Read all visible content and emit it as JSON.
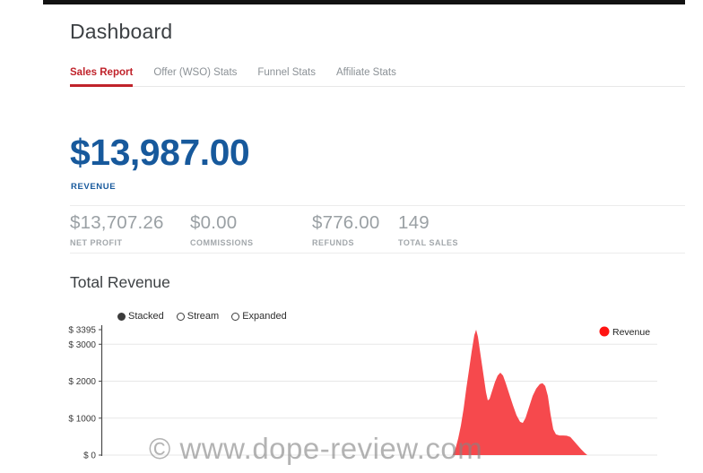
{
  "page": {
    "title": "Dashboard"
  },
  "tabs": [
    {
      "label": "Sales Report",
      "active": true
    },
    {
      "label": "Offer (WSO) Stats",
      "active": false
    },
    {
      "label": "Funnel Stats",
      "active": false
    },
    {
      "label": "Affiliate Stats",
      "active": false
    }
  ],
  "summary": {
    "revenue_value": "$13,987.00",
    "revenue_label": "REVENUE",
    "stats": [
      {
        "value": "$13,707.26",
        "label": "NET PROFIT"
      },
      {
        "value": "$0.00",
        "label": "COMMISSIONS"
      },
      {
        "value": "$776.00",
        "label": "REFUNDS"
      },
      {
        "value": "149",
        "label": "TOTAL SALES"
      }
    ]
  },
  "chart_section": {
    "title": "Total Revenue",
    "modes": [
      {
        "label": "Stacked",
        "selected": true
      },
      {
        "label": "Stream",
        "selected": false
      },
      {
        "label": "Expanded",
        "selected": false
      }
    ],
    "legend": [
      {
        "label": "Revenue",
        "color": "#ff1412"
      }
    ]
  },
  "chart_data": {
    "type": "area",
    "title": "Total Revenue",
    "xlabel": "",
    "ylabel": "",
    "ylim": [
      0,
      3395
    ],
    "grid": true,
    "legend_position": "top-right",
    "y_ticks": [
      {
        "label": "$ 3395",
        "value": 3395,
        "grid": false
      },
      {
        "label": "$ 3000",
        "value": 3000,
        "grid": true
      },
      {
        "label": "$ 2000",
        "value": 2000,
        "grid": true
      },
      {
        "label": "$ 1000",
        "value": 1000,
        "grid": true
      },
      {
        "label": "$ 0",
        "value": 0,
        "grid": true
      }
    ],
    "series": [
      {
        "name": "Revenue",
        "color": "#f6494d",
        "points": [
          [
            505,
            0
          ],
          [
            508,
            180
          ],
          [
            511,
            450
          ],
          [
            514,
            800
          ],
          [
            517,
            1250
          ],
          [
            520,
            1800
          ],
          [
            523,
            2300
          ],
          [
            526,
            2800
          ],
          [
            529,
            3250
          ],
          [
            531,
            3395
          ],
          [
            533,
            3200
          ],
          [
            536,
            2700
          ],
          [
            539,
            2200
          ],
          [
            542,
            1700
          ],
          [
            544,
            1480
          ],
          [
            546,
            1520
          ],
          [
            549,
            1750
          ],
          [
            552,
            1980
          ],
          [
            555,
            2150
          ],
          [
            558,
            2230
          ],
          [
            561,
            2150
          ],
          [
            564,
            1950
          ],
          [
            568,
            1650
          ],
          [
            572,
            1350
          ],
          [
            576,
            1080
          ],
          [
            580,
            900
          ],
          [
            583,
            870
          ],
          [
            586,
            1000
          ],
          [
            590,
            1300
          ],
          [
            594,
            1600
          ],
          [
            598,
            1800
          ],
          [
            602,
            1920
          ],
          [
            605,
            1945
          ],
          [
            608,
            1870
          ],
          [
            611,
            1600
          ],
          [
            614,
            1100
          ],
          [
            617,
            700
          ],
          [
            620,
            560
          ],
          [
            624,
            530
          ],
          [
            628,
            530
          ],
          [
            632,
            525
          ],
          [
            636,
            490
          ],
          [
            640,
            380
          ],
          [
            644,
            270
          ],
          [
            648,
            160
          ],
          [
            652,
            60
          ],
          [
            655,
            0
          ]
        ]
      }
    ]
  },
  "watermark": "© www.dope-review.com",
  "colors": {
    "topbar": "#121212",
    "tab_active": "#c0232b",
    "revenue_blue": "#17599c",
    "chart_red": "#f6494d",
    "legend_red": "#ff1412"
  }
}
